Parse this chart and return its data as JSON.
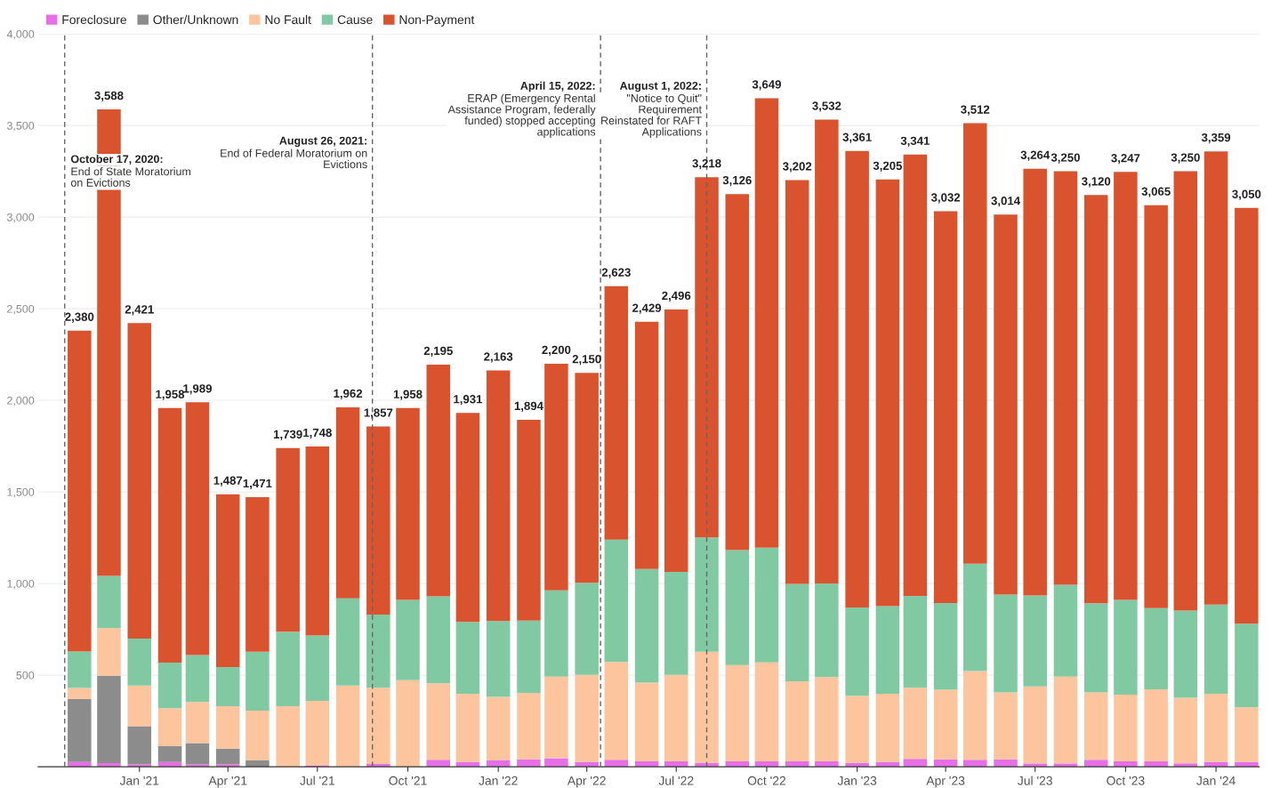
{
  "chart_data": {
    "type": "bar",
    "stacked": true,
    "x": [
      "2020-11",
      "2020-12",
      "2021-01",
      "2021-02",
      "2021-03",
      "2021-04",
      "2021-05",
      "2021-06",
      "2021-07",
      "2021-08",
      "2021-09",
      "2021-10",
      "2021-11",
      "2021-12",
      "2022-01",
      "2022-02",
      "2022-03",
      "2022-04",
      "2022-05",
      "2022-06",
      "2022-07",
      "2022-08",
      "2022-09",
      "2022-10",
      "2022-11",
      "2022-12",
      "2023-01",
      "2023-02",
      "2023-03",
      "2023-04",
      "2023-05",
      "2023-06",
      "2023-07",
      "2023-08",
      "2023-09",
      "2023-10",
      "2023-11",
      "2023-12",
      "2024-01",
      "2024-02"
    ],
    "series": [
      {
        "name": "Foreclosure",
        "color": "#e66ee6",
        "values": [
          26,
          20,
          13,
          26,
          13,
          13,
          null,
          null,
          8,
          null,
          15,
          null,
          38,
          26,
          36,
          40,
          46,
          26,
          38,
          30,
          30,
          21,
          30,
          30,
          30,
          30,
          21,
          26,
          43,
          40,
          38,
          40,
          18,
          18,
          38,
          30,
          30,
          18,
          26,
          26
        ]
      },
      {
        "name": "Other/Unknown",
        "color": "#8c8c8c",
        "values": [
          344,
          477,
          208,
          86,
          116,
          86,
          36,
          0,
          0,
          0,
          0,
          0,
          0,
          0,
          0,
          0,
          0,
          0,
          0,
          0,
          0,
          0,
          0,
          0,
          0,
          0,
          0,
          0,
          0,
          0,
          0,
          0,
          0,
          0,
          0,
          0,
          0,
          0,
          0,
          0
        ]
      },
      {
        "name": "No Fault",
        "color": "#fcc59e",
        "values": [
          60,
          260,
          222,
          207,
          225,
          231,
          270,
          330,
          352,
          443,
          416,
          472,
          418,
          372,
          346,
          363,
          446,
          475,
          534,
          429,
          471,
          607,
          525,
          540,
          437,
          459,
          366,
          372,
          388,
          380,
          484,
          366,
          421,
          474,
          368,
          363,
          393,
          359,
          372,
          298
        ]
      },
      {
        "name": "Cause",
        "color": "#80c9a3",
        "values": [
          199,
          285,
          256,
          249,
          256,
          214,
          322,
          407,
          357,
          476,
          400,
          438,
          474,
          392,
          413,
          395,
          471,
          503,
          667,
          620,
          563,
          624,
          628,
          626,
          531,
          512,
          482,
          479,
          501,
          474,
          586,
          534,
          496,
          501,
          486,
          517,
          443,
          475,
          487,
          457
        ]
      },
      {
        "name": "Non-Payment",
        "color": "#d9532f",
        "values": [
          1751,
          2546,
          1722,
          1390,
          1379,
          943,
          843,
          1002,
          1031,
          1043,
          1026,
          1048,
          1265,
          1141,
          1368,
          1096,
          1237,
          1146,
          1384,
          1350,
          1432,
          1966,
          1943,
          2453,
          2204,
          2531,
          2492,
          2328,
          2409,
          2138,
          2404,
          2074,
          2329,
          2257,
          2228,
          2337,
          2199,
          2398,
          2474,
          2269
        ]
      }
    ],
    "totals": [
      "2,380",
      "3,588",
      "2,421",
      "1,958",
      "1,989",
      "1,487",
      "1,471",
      "1,739",
      "1,748",
      "1,962",
      "1,857",
      "1,958",
      "2,195",
      "1,931",
      "2,163",
      "1,894",
      "2,200",
      "2,150",
      "2,623",
      "2,429",
      "2,496",
      "3,218",
      "3,126",
      "3,649",
      "3,202",
      "3,532",
      "3,361",
      "3,205",
      "3,341",
      "3,032",
      "3,512",
      "3,014",
      "3,264",
      "3,250",
      "3,120",
      "3,247",
      "3,065",
      "3,250",
      "3,359",
      "3,050"
    ],
    "xlim": [
      "2020-09-20",
      "2024-02-14"
    ],
    "xticks": [
      {
        "value": "2021-01",
        "label": "Jan '21"
      },
      {
        "value": "2021-04",
        "label": "Apr '21"
      },
      {
        "value": "2021-07",
        "label": "Jul '21"
      },
      {
        "value": "2021-10",
        "label": "Oct '21"
      },
      {
        "value": "2022-01",
        "label": "Jan '22"
      },
      {
        "value": "2022-04",
        "label": "Apr '22"
      },
      {
        "value": "2022-07",
        "label": "Jul '22"
      },
      {
        "value": "2022-10",
        "label": "Oct '22"
      },
      {
        "value": "2023-01",
        "label": "Jan '23"
      },
      {
        "value": "2023-04",
        "label": "Apr '23"
      },
      {
        "value": "2023-07",
        "label": "Jul '23"
      },
      {
        "value": "2023-10",
        "label": "Oct '23"
      },
      {
        "value": "2024-01",
        "label": "Jan '24"
      }
    ],
    "ylim": [
      0,
      4000
    ],
    "yticks": [
      500,
      {
        "value": 1000,
        "label": "1,000"
      },
      {
        "value": 1500,
        "label": "1,500"
      },
      {
        "value": 2000,
        "label": "2,000"
      },
      {
        "value": 2500,
        "label": "2,500"
      },
      {
        "value": 3000,
        "label": "3,000"
      },
      {
        "value": 3500,
        "label": "3,500"
      },
      {
        "value": 4000,
        "label": "4,000"
      }
    ],
    "grid": "y",
    "legend": "top left",
    "ref_lines": [
      {
        "axis": "x",
        "value": "2020-10-17",
        "label": "October 17, 2020:\nEnd of State Moratorium\non Evictions",
        "line_style": "dashed",
        "color": "#666666"
      },
      {
        "axis": "x",
        "value": "2021-08-26",
        "label": "August 26, 2021:\nEnd of Federal Moratorium on\nEvictions",
        "line_style": "dashed",
        "color": "#666666"
      },
      {
        "axis": "x",
        "value": "2022-04-15",
        "label": "April 15, 2022:\nERAP (Emergency Rental\nAssistance Program, federally\nfunded) stopped accepting\napplications",
        "line_style": "dashed",
        "color": "#666666"
      },
      {
        "axis": "x",
        "value": "2022-08-01",
        "label": "August 1, 2022:\n\"Notice to Quit\"\nRequirement\nReinstated for RAFT\nApplications",
        "line_style": "dashed",
        "color": "#666666"
      }
    ]
  }
}
